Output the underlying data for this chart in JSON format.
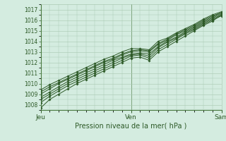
{
  "xlabel": "Pression niveau de la mer( hPa )",
  "bg_color": "#d4ece0",
  "plot_bg_color": "#d4ece0",
  "line_color": "#2d5a27",
  "grid_color": "#a8c8b0",
  "tick_label_color": "#2d5a27",
  "spine_color": "#4a7a40",
  "ylim": [
    1007.5,
    1017.5
  ],
  "yticks": [
    1008,
    1009,
    1010,
    1011,
    1012,
    1013,
    1014,
    1015,
    1016,
    1017
  ],
  "xtick_labels": [
    "Jeu",
    "Ven",
    "Sam"
  ],
  "xtick_positions": [
    0.0,
    0.5,
    1.0
  ],
  "series": [
    [
      1007.7,
      1008.5,
      1009.0,
      1009.5,
      1010.0,
      1010.4,
      1010.8,
      1011.2,
      1011.6,
      1012.0,
      1012.4,
      1012.5,
      1012.2,
      1013.0,
      1013.5,
      1014.0,
      1014.5,
      1015.0,
      1015.5,
      1015.9,
      1016.5
    ],
    [
      1008.2,
      1008.8,
      1009.3,
      1009.8,
      1010.2,
      1010.6,
      1011.0,
      1011.4,
      1011.8,
      1012.2,
      1012.6,
      1012.7,
      1012.4,
      1013.2,
      1013.7,
      1014.2,
      1014.7,
      1015.1,
      1015.6,
      1016.0,
      1016.4
    ],
    [
      1008.5,
      1009.0,
      1009.5,
      1010.0,
      1010.4,
      1010.8,
      1011.2,
      1011.6,
      1012.0,
      1012.4,
      1012.7,
      1012.8,
      1012.6,
      1013.4,
      1013.9,
      1014.3,
      1014.8,
      1015.2,
      1015.7,
      1016.1,
      1016.5
    ],
    [
      1008.7,
      1009.2,
      1009.7,
      1010.2,
      1010.6,
      1011.0,
      1011.4,
      1011.8,
      1012.2,
      1012.5,
      1012.8,
      1012.9,
      1012.8,
      1013.5,
      1014.0,
      1014.4,
      1014.9,
      1015.3,
      1015.8,
      1016.2,
      1016.6
    ],
    [
      1009.0,
      1009.5,
      1010.0,
      1010.4,
      1010.8,
      1011.2,
      1011.6,
      1012.0,
      1012.3,
      1012.7,
      1013.0,
      1013.1,
      1013.0,
      1013.7,
      1014.1,
      1014.6,
      1015.0,
      1015.4,
      1015.9,
      1016.3,
      1016.7
    ],
    [
      1009.2,
      1009.7,
      1010.1,
      1010.5,
      1010.9,
      1011.3,
      1011.7,
      1012.1,
      1012.4,
      1012.8,
      1013.1,
      1013.2,
      1013.1,
      1013.8,
      1014.2,
      1014.7,
      1015.1,
      1015.5,
      1016.0,
      1016.4,
      1016.7
    ],
    [
      1009.4,
      1009.9,
      1010.3,
      1010.7,
      1011.1,
      1011.5,
      1011.9,
      1012.3,
      1012.6,
      1013.0,
      1013.3,
      1013.3,
      1013.2,
      1014.0,
      1014.3,
      1014.8,
      1015.2,
      1015.6,
      1016.1,
      1016.5,
      1016.8
    ]
  ],
  "marker": "D",
  "marker_size": 1.8,
  "line_width": 0.7,
  "xlabel_fontsize": 7,
  "tick_fontsize": 5.5,
  "xtick_fontsize": 6.5
}
